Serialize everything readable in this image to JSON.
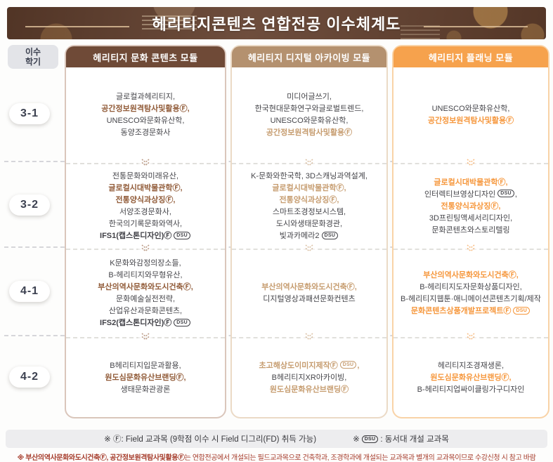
{
  "title": "헤리티지콘텐츠 연합전공 이수체계도",
  "semester_header": "이수\n학기",
  "badge_dsu": "DSU",
  "columns": [
    {
      "header": "헤리티지 문화 콘텐츠 모듈"
    },
    {
      "header": "헤리티지 디지털 아카이빙 모듈"
    },
    {
      "header": "헤리티지 플래닝 모듈"
    }
  ],
  "rows": [
    {
      "semester": "3-1",
      "cells": [
        [
          {
            "t": "글로컬과헤리티지,",
            "s": "n"
          },
          {
            "t": "공간정보원격탐사및활용Ⓕ,",
            "s": "h"
          },
          {
            "t": "UNESCO와문화유산학,",
            "s": "n"
          },
          {
            "t": "동양조경문화사",
            "s": "n"
          }
        ],
        [
          {
            "t": "미디어글쓰기,",
            "s": "n"
          },
          {
            "t": "한국현대문화연구와글로벌트렌드,",
            "s": "n"
          },
          {
            "t": "UNESCO와문화유산학,",
            "s": "n"
          },
          {
            "t": "공간정보원격탐사및활용Ⓕ",
            "s": "h"
          }
        ],
        [
          {
            "t": "UNESCO와문화유산학,",
            "s": "n"
          },
          {
            "t": "공간정보원격탐사및활용Ⓕ",
            "s": "h"
          }
        ]
      ]
    },
    {
      "semester": "3-2",
      "cells": [
        [
          {
            "t": "전통문화와미래유산,",
            "s": "n"
          },
          {
            "t": "글로컬시대박물관학Ⓕ,",
            "s": "h"
          },
          {
            "t": "전통양식과상징Ⓕ,",
            "s": "h"
          },
          {
            "t": "서양조경문화사,",
            "s": "n"
          },
          {
            "t": "한국의기록문화와역사,",
            "s": "n"
          },
          {
            "t": "IFS1(캡스톤디자인)Ⓕ",
            "s": "b",
            "dsu": true
          }
        ],
        [
          {
            "t": "K-문화와한국학, 3D스캐닝과역설계,",
            "s": "n"
          },
          {
            "t": "글로컬시대박물관학Ⓕ,",
            "s": "h"
          },
          {
            "t": "전통양식과상징Ⓕ,",
            "s": "h"
          },
          {
            "t": "스마트조경정보시스템,",
            "s": "n"
          },
          {
            "t": "도시와생태문화경관,",
            "s": "n"
          },
          {
            "t": "빛과카메라2",
            "s": "n",
            "dsu": true
          }
        ],
        [
          {
            "t": "글로컬시대박물관학Ⓕ,",
            "s": "h"
          },
          {
            "t": "인터렉티브영상디자인",
            "s": "n",
            "dsu": true,
            "tail": ","
          },
          {
            "t": "전통양식과상징Ⓕ,",
            "s": "h"
          },
          {
            "t": "3D프린팅액세서리디자인,",
            "s": "n"
          },
          {
            "t": "문화콘텐츠와스토리텔링",
            "s": "n"
          }
        ]
      ]
    },
    {
      "semester": "4-1",
      "cells": [
        [
          {
            "t": "K문화와감정의장소들,",
            "s": "n"
          },
          {
            "t": "B-헤리티지와무형유산,",
            "s": "n"
          },
          {
            "t": "부산의역사문화와도시건축Ⓕ,",
            "s": "h"
          },
          {
            "t": "문화예술실전전략,",
            "s": "n"
          },
          {
            "t": "산업유산과문화콘텐츠,",
            "s": "n"
          },
          {
            "t": "IFS2(캡스톤디자인)Ⓕ",
            "s": "b",
            "dsu": true
          }
        ],
        [
          {
            "t": "부산의역사문화와도시건축Ⓕ,",
            "s": "h"
          },
          {
            "t": "디지털영상과패션문화컨텐츠",
            "s": "n"
          }
        ],
        [
          {
            "t": "부산의역사문화와도시건축Ⓕ,",
            "s": "h"
          },
          {
            "t": "B-헤리티지도자문화상품디자인,",
            "s": "n"
          },
          {
            "t": "B-헤리티지웹툰·애니메이션콘텐츠기획/제작",
            "s": "n"
          },
          {
            "t": "문화콘텐츠상품개발프로젝트Ⓕ",
            "s": "h",
            "dsu": true
          }
        ]
      ]
    },
    {
      "semester": "4-2",
      "cells": [
        [
          {
            "t": "B헤리티지입문과활용,",
            "s": "n"
          },
          {
            "t": "원도심문화유산브랜딩Ⓕ,",
            "s": "h"
          },
          {
            "t": "생태문화관광론",
            "s": "n"
          }
        ],
        [
          {
            "t": "초고해상도이미지제작Ⓕ",
            "s": "h",
            "dsu": true,
            "tail": ","
          },
          {
            "t": "B헤리티지XR아카이빙,",
            "s": "n"
          },
          {
            "t": "원도심문화유산브랜딩Ⓕ",
            "s": "h"
          }
        ],
        [
          {
            "t": "헤리티지조경재생론,",
            "s": "n"
          },
          {
            "t": "원도심문화유산브랜딩Ⓕ,",
            "s": "h"
          },
          {
            "t": "B-헤리티지업싸이클링가구디자인",
            "s": "n"
          }
        ]
      ]
    }
  ],
  "legend": {
    "field": "※ Ⓕ: Field 교과목 (9학점 이수 시 Field 디그리(FD) 취득 가능)",
    "dsu_prefix": "※",
    "dsu_suffix": ": 동서대 개설 교과목"
  },
  "footnote": {
    "bold_part": "※ 부산의역사문화와도시건축Ⓕ, 공간정보원격탐사및활용Ⓕ",
    "rest": "는 연합전공에서 개설되는 필드교과목으로 건축학과, 조경학과에 개설되는 교과목과 별개의 교과목이므로 수강신청 시 참고 바람"
  },
  "colors": {
    "title_bg": "#63402E",
    "title_text": "#FFFFFF",
    "module1_header": "#6F4A37",
    "module1_border": "#DAC6BB",
    "module1_highlight": "#915B38",
    "module2_header": "#B4916F",
    "module2_border": "#EBDAC6",
    "module2_highlight": "#C69C6F",
    "module3_header": "#F6A24D",
    "module3_border": "#F9D3A7",
    "module3_highlight": "#F6973C",
    "text": "#45454A",
    "semester_text": "#3C4150",
    "semester_header_bg": "#E3E4E8",
    "legend_bg": "#EDEDEF",
    "footnote": "#A63C2B",
    "separator": "#D6D6DA"
  }
}
